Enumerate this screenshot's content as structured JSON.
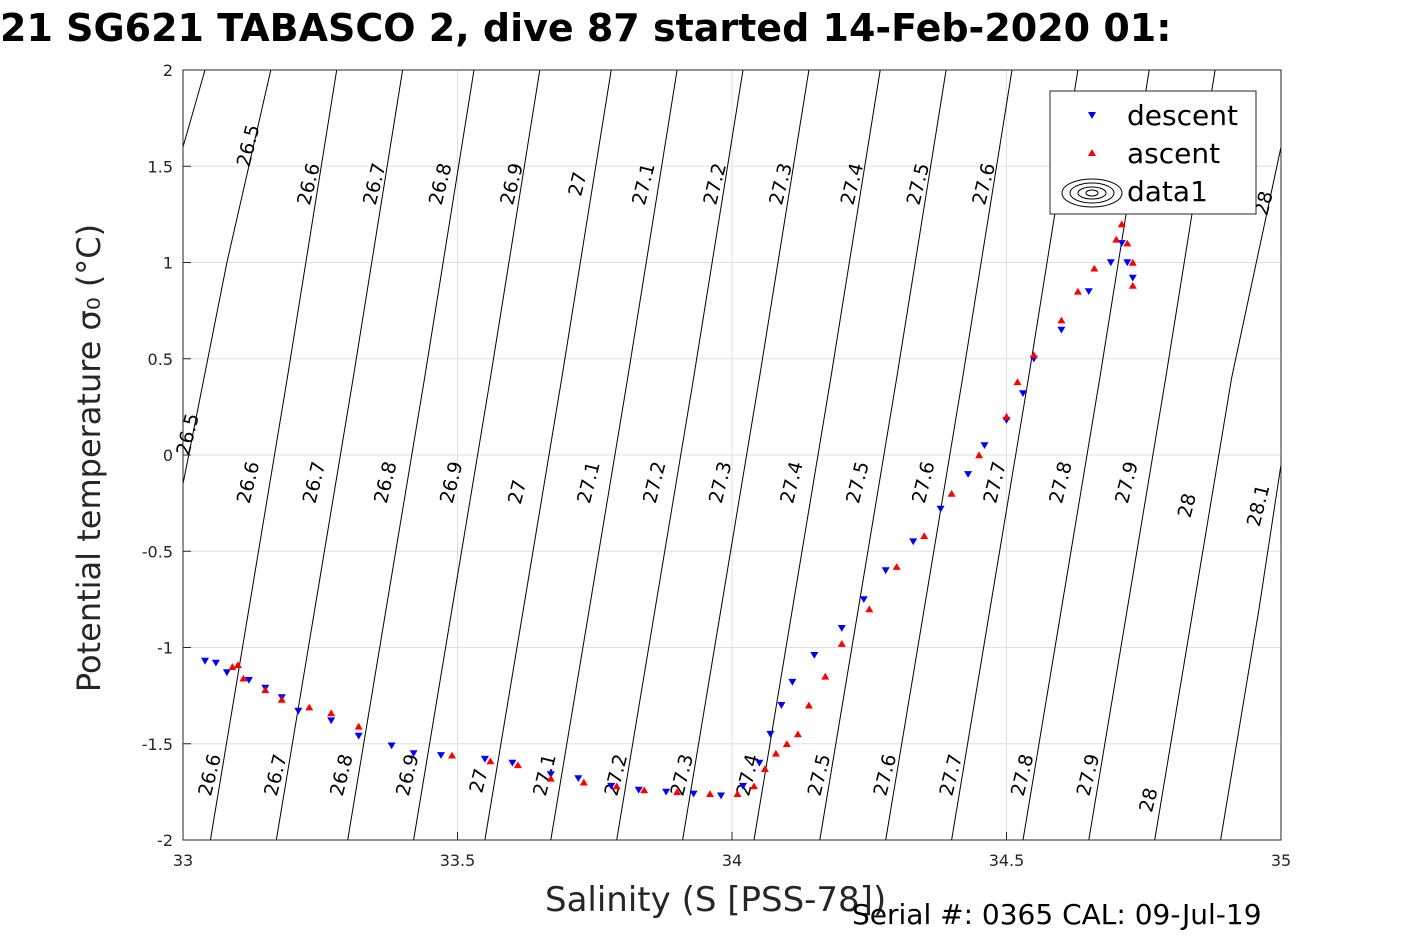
{
  "chart_data": {
    "type": "scatter",
    "title": "21 SG621 TABASCO 2, dive 87 started 14-Feb-2020 01:",
    "xlabel": "Salinity (S [PSS-78])",
    "ylabel": "Potential temperature σ₀ (°C)",
    "xlim": [
      33,
      35
    ],
    "ylim": [
      -2,
      2
    ],
    "x_ticks": [
      "33",
      "33.5",
      "34",
      "34.5",
      "35"
    ],
    "y_ticks": [
      "-2",
      "-1.5",
      "-1",
      "-0.5",
      "0",
      "0.5",
      "1",
      "1.5",
      "2"
    ],
    "grid": true,
    "legend": {
      "placement": "top-right",
      "entries": [
        {
          "label": "descent",
          "color": "#0000ff",
          "marker": "triangle-down"
        },
        {
          "label": "ascent",
          "color": "#ff0000",
          "marker": "triangle-up"
        },
        {
          "label": "data1",
          "color": "#000000",
          "marker": "contour"
        }
      ]
    },
    "contours": {
      "levels": [
        "26.5",
        "26.6",
        "26.7",
        "26.8",
        "26.9",
        "27",
        "27.1",
        "27.2",
        "27.3",
        "27.4",
        "27.5",
        "27.6",
        "27.7",
        "27.8",
        "27.9",
        "28",
        "28.1"
      ],
      "lines": [
        {
          "pts": [
            [
              33.0,
              1.6
            ],
            [
              33.04,
              2.0
            ]
          ]
        },
        {
          "pts": [
            [
              33.0,
              -0.15
            ],
            [
              33.08,
              1.0
            ],
            [
              33.16,
              2.0
            ]
          ]
        },
        {
          "pts": [
            [
              33.05,
              -2.0
            ],
            [
              33.12,
              -0.8
            ],
            [
              33.19,
              0.4
            ],
            [
              33.28,
              2.0
            ]
          ]
        },
        {
          "pts": [
            [
              33.17,
              -2.0
            ],
            [
              33.24,
              -0.8
            ],
            [
              33.31,
              0.4
            ],
            [
              33.4,
              2.0
            ]
          ]
        },
        {
          "pts": [
            [
              33.3,
              -2.0
            ],
            [
              33.37,
              -0.8
            ],
            [
              33.44,
              0.4
            ],
            [
              33.53,
              2.0
            ]
          ]
        },
        {
          "pts": [
            [
              33.42,
              -2.0
            ],
            [
              33.49,
              -0.8
            ],
            [
              33.56,
              0.4
            ],
            [
              33.65,
              2.0
            ]
          ]
        },
        {
          "pts": [
            [
              33.55,
              -2.0
            ],
            [
              33.62,
              -0.8
            ],
            [
              33.69,
              0.4
            ],
            [
              33.78,
              2.0
            ]
          ]
        },
        {
          "pts": [
            [
              33.67,
              -2.0
            ],
            [
              33.74,
              -0.8
            ],
            [
              33.81,
              0.4
            ],
            [
              33.9,
              2.0
            ]
          ]
        },
        {
          "pts": [
            [
              33.79,
              -2.0
            ],
            [
              33.86,
              -0.8
            ],
            [
              33.93,
              0.4
            ],
            [
              34.02,
              2.0
            ]
          ]
        },
        {
          "pts": [
            [
              33.91,
              -2.0
            ],
            [
              33.98,
              -0.8
            ],
            [
              34.05,
              0.4
            ],
            [
              34.14,
              2.0
            ]
          ]
        },
        {
          "pts": [
            [
              34.04,
              -2.0
            ],
            [
              34.11,
              -0.8
            ],
            [
              34.18,
              0.4
            ],
            [
              34.27,
              2.0
            ]
          ]
        },
        {
          "pts": [
            [
              34.16,
              -2.0
            ],
            [
              34.23,
              -0.8
            ],
            [
              34.3,
              0.4
            ],
            [
              34.39,
              2.0
            ]
          ]
        },
        {
          "pts": [
            [
              34.28,
              -2.0
            ],
            [
              34.35,
              -0.8
            ],
            [
              34.42,
              0.4
            ],
            [
              34.51,
              2.0
            ]
          ]
        },
        {
          "pts": [
            [
              34.4,
              -2.0
            ],
            [
              34.47,
              -0.8
            ],
            [
              34.54,
              0.4
            ],
            [
              34.63,
              2.0
            ]
          ]
        },
        {
          "pts": [
            [
              34.53,
              -2.0
            ],
            [
              34.6,
              -0.8
            ],
            [
              34.67,
              0.4
            ],
            [
              34.76,
              2.0
            ]
          ]
        },
        {
          "pts": [
            [
              34.65,
              -2.0
            ],
            [
              34.72,
              -0.8
            ],
            [
              34.79,
              0.4
            ],
            [
              34.88,
              2.0
            ]
          ]
        },
        {
          "pts": [
            [
              34.77,
              -2.0
            ],
            [
              34.84,
              -0.8
            ],
            [
              34.91,
              0.4
            ],
            [
              35.0,
              1.6
            ]
          ]
        },
        {
          "pts": [
            [
              34.89,
              -2.0
            ],
            [
              34.96,
              -0.8
            ],
            [
              35.0,
              -0.05
            ]
          ]
        }
      ],
      "labels": [
        {
          "text": "26.5",
          "x": 33.13,
          "y": 1.6
        },
        {
          "text": "26.6",
          "x": 33.24,
          "y": 1.4
        },
        {
          "text": "26.7",
          "x": 33.36,
          "y": 1.4
        },
        {
          "text": "26.8",
          "x": 33.48,
          "y": 1.4
        },
        {
          "text": "26.9",
          "x": 33.61,
          "y": 1.4
        },
        {
          "text": "27",
          "x": 33.73,
          "y": 1.4
        },
        {
          "text": "27.1",
          "x": 33.85,
          "y": 1.4
        },
        {
          "text": "27.2",
          "x": 33.98,
          "y": 1.4
        },
        {
          "text": "27.3",
          "x": 34.1,
          "y": 1.4
        },
        {
          "text": "27.4",
          "x": 34.23,
          "y": 1.4
        },
        {
          "text": "27.5",
          "x": 34.35,
          "y": 1.4
        },
        {
          "text": "27.6",
          "x": 34.47,
          "y": 1.4
        },
        {
          "text": "28",
          "x": 34.98,
          "y": 1.3
        },
        {
          "text": "26.5",
          "x": 33.02,
          "y": 0.1
        },
        {
          "text": "26.6",
          "x": 33.13,
          "y": -0.15
        },
        {
          "text": "26.7",
          "x": 33.25,
          "y": -0.15
        },
        {
          "text": "26.8",
          "x": 33.38,
          "y": -0.15
        },
        {
          "text": "26.9",
          "x": 33.5,
          "y": -0.15
        },
        {
          "text": "27",
          "x": 33.62,
          "y": -0.2
        },
        {
          "text": "27.1",
          "x": 33.75,
          "y": -0.15
        },
        {
          "text": "27.2",
          "x": 33.87,
          "y": -0.15
        },
        {
          "text": "27.3",
          "x": 33.99,
          "y": -0.15
        },
        {
          "text": "27.4",
          "x": 34.12,
          "y": -0.15
        },
        {
          "text": "27.5",
          "x": 34.24,
          "y": -0.15
        },
        {
          "text": "27.6",
          "x": 34.36,
          "y": -0.15
        },
        {
          "text": "27.7",
          "x": 34.49,
          "y": -0.15
        },
        {
          "text": "27.8",
          "x": 34.61,
          "y": -0.15
        },
        {
          "text": "27.9",
          "x": 34.73,
          "y": -0.15
        },
        {
          "text": "28",
          "x": 34.84,
          "y": -0.27
        },
        {
          "text": "28.1",
          "x": 34.97,
          "y": -0.27
        },
        {
          "text": "26.6",
          "x": 33.06,
          "y": -1.67
        },
        {
          "text": "26.7",
          "x": 33.18,
          "y": -1.67
        },
        {
          "text": "26.8",
          "x": 33.3,
          "y": -1.67
        },
        {
          "text": "26.9",
          "x": 33.42,
          "y": -1.67
        },
        {
          "text": "27",
          "x": 33.55,
          "y": -1.7
        },
        {
          "text": "27.1",
          "x": 33.67,
          "y": -1.67
        },
        {
          "text": "27.2",
          "x": 33.8,
          "y": -1.67
        },
        {
          "text": "27.3",
          "x": 33.92,
          "y": -1.67
        },
        {
          "text": "27.4",
          "x": 34.04,
          "y": -1.67
        },
        {
          "text": "27.5",
          "x": 34.17,
          "y": -1.67
        },
        {
          "text": "27.6",
          "x": 34.29,
          "y": -1.67
        },
        {
          "text": "27.7",
          "x": 34.41,
          "y": -1.67
        },
        {
          "text": "27.8",
          "x": 34.54,
          "y": -1.67
        },
        {
          "text": "27.9",
          "x": 34.66,
          "y": -1.67
        },
        {
          "text": "28",
          "x": 34.77,
          "y": -1.8
        }
      ]
    },
    "series": [
      {
        "name": "descent",
        "color": "#0000ff",
        "marker": "triangle-down",
        "points": [
          [
            33.04,
            -1.07
          ],
          [
            33.06,
            -1.08
          ],
          [
            33.08,
            -1.13
          ],
          [
            33.12,
            -1.17
          ],
          [
            33.15,
            -1.21
          ],
          [
            33.18,
            -1.26
          ],
          [
            33.21,
            -1.33
          ],
          [
            33.27,
            -1.38
          ],
          [
            33.32,
            -1.46
          ],
          [
            33.38,
            -1.51
          ],
          [
            33.42,
            -1.55
          ],
          [
            33.47,
            -1.56
          ],
          [
            33.55,
            -1.58
          ],
          [
            33.6,
            -1.6
          ],
          [
            33.67,
            -1.66
          ],
          [
            33.72,
            -1.68
          ],
          [
            33.78,
            -1.72
          ],
          [
            33.83,
            -1.74
          ],
          [
            33.88,
            -1.75
          ],
          [
            33.93,
            -1.76
          ],
          [
            33.98,
            -1.77
          ],
          [
            34.02,
            -1.72
          ],
          [
            34.05,
            -1.6
          ],
          [
            34.07,
            -1.45
          ],
          [
            34.09,
            -1.3
          ],
          [
            34.11,
            -1.18
          ],
          [
            34.15,
            -1.04
          ],
          [
            34.2,
            -0.9
          ],
          [
            34.24,
            -0.75
          ],
          [
            34.28,
            -0.6
          ],
          [
            34.33,
            -0.45
          ],
          [
            34.38,
            -0.28
          ],
          [
            34.43,
            -0.1
          ],
          [
            34.46,
            0.05
          ],
          [
            34.5,
            0.18
          ],
          [
            34.53,
            0.32
          ],
          [
            34.55,
            0.5
          ],
          [
            34.6,
            0.65
          ],
          [
            34.65,
            0.85
          ],
          [
            34.69,
            1.0
          ],
          [
            34.71,
            1.1
          ],
          [
            34.72,
            1.0
          ],
          [
            34.73,
            0.92
          ]
        ]
      },
      {
        "name": "ascent",
        "color": "#ff0000",
        "marker": "triangle-up",
        "points": [
          [
            33.09,
            -1.1
          ],
          [
            33.1,
            -1.09
          ],
          [
            33.11,
            -1.16
          ],
          [
            33.15,
            -1.22
          ],
          [
            33.18,
            -1.27
          ],
          [
            33.23,
            -1.31
          ],
          [
            33.27,
            -1.34
          ],
          [
            33.32,
            -1.41
          ],
          [
            33.49,
            -1.56
          ],
          [
            33.56,
            -1.59
          ],
          [
            33.61,
            -1.61
          ],
          [
            33.67,
            -1.68
          ],
          [
            33.73,
            -1.7
          ],
          [
            33.79,
            -1.72
          ],
          [
            33.84,
            -1.74
          ],
          [
            33.9,
            -1.75
          ],
          [
            33.96,
            -1.76
          ],
          [
            34.01,
            -1.76
          ],
          [
            34.04,
            -1.72
          ],
          [
            34.06,
            -1.63
          ],
          [
            34.08,
            -1.55
          ],
          [
            34.1,
            -1.5
          ],
          [
            34.12,
            -1.45
          ],
          [
            34.14,
            -1.3
          ],
          [
            34.17,
            -1.15
          ],
          [
            34.2,
            -0.98
          ],
          [
            34.25,
            -0.8
          ],
          [
            34.3,
            -0.58
          ],
          [
            34.35,
            -0.42
          ],
          [
            34.4,
            -0.2
          ],
          [
            34.45,
            0.0
          ],
          [
            34.5,
            0.2
          ],
          [
            34.52,
            0.38
          ],
          [
            34.55,
            0.52
          ],
          [
            34.6,
            0.7
          ],
          [
            34.63,
            0.85
          ],
          [
            34.66,
            0.97
          ],
          [
            34.7,
            1.12
          ],
          [
            34.71,
            1.2
          ],
          [
            34.72,
            1.1
          ],
          [
            34.73,
            1.0
          ],
          [
            34.73,
            0.88
          ]
        ]
      }
    ]
  },
  "footer": "Serial #: 0365  CAL: 09-Jul-19"
}
